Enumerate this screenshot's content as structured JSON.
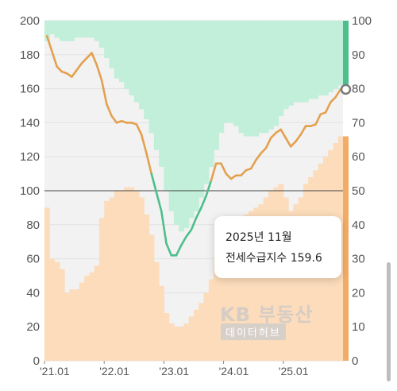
{
  "chart_data": {
    "type": "line",
    "y_left_ticks": [
      0,
      20,
      40,
      60,
      80,
      100,
      120,
      140,
      160,
      180,
      200
    ],
    "y_right_ticks": [
      0,
      10,
      20,
      30,
      40,
      50,
      60,
      70,
      80,
      90,
      100
    ],
    "x_ticks": [
      "'21.01",
      "'22.01",
      "'23.01",
      "'24.01",
      "'25.01"
    ],
    "ylim_left": [
      0,
      200
    ],
    "ylim_right": [
      0,
      100
    ],
    "reference_line": 100,
    "series": [
      {
        "values": [
          191,
          182,
          173,
          170,
          169,
          167,
          171,
          175,
          178,
          181,
          174,
          165,
          151,
          144,
          140,
          141,
          140,
          140,
          139,
          133,
          122,
          110,
          99,
          88,
          69,
          62,
          62,
          68,
          73,
          77,
          84,
          90,
          97,
          106,
          116,
          116,
          110,
          107,
          109,
          109,
          112,
          113,
          118,
          122,
          125,
          131,
          134,
          136,
          131,
          126,
          129,
          133,
          138,
          138,
          139,
          145,
          146,
          152,
          155,
          159.6
        ]
      },
      {
        "values": [
          45,
          30,
          29,
          27,
          20,
          21,
          21,
          23,
          25,
          26,
          28,
          42,
          47,
          48,
          50,
          50,
          51,
          51,
          50,
          48,
          43,
          37,
          29,
          22,
          14,
          11,
          10,
          10,
          11,
          13,
          15,
          17,
          20,
          24,
          30,
          33,
          36,
          39,
          40,
          41,
          43,
          44,
          45,
          46,
          48,
          50,
          51,
          52,
          48,
          44,
          46,
          48,
          52,
          54,
          56,
          58,
          60,
          62,
          64,
          66
        ]
      },
      {
        "values": [
          6,
          4,
          5,
          6,
          6,
          6,
          5,
          5,
          5,
          5,
          6,
          8,
          11,
          14,
          17,
          18,
          20,
          22,
          24,
          26,
          29,
          33,
          38,
          43,
          50,
          56,
          60,
          62,
          61,
          58,
          56,
          52,
          48,
          43,
          38,
          33,
          30,
          30,
          31,
          33,
          34,
          34,
          34,
          33,
          33,
          32,
          31,
          28,
          26,
          25,
          24,
          24,
          24,
          23,
          23,
          22,
          22,
          21,
          20,
          19
        ]
      }
    ],
    "colors": {
      "line": "#e3a14f",
      "line_low": "#4dbe8c",
      "supply_fill": "#fcdcbb",
      "demand_fill": "#c1efd9",
      "background": "#f2f2f2",
      "latest": "#f3ac66"
    }
  },
  "tooltip": {
    "date": "2025년 11월",
    "label": "전세수급지수 159.6"
  },
  "watermark": {
    "line1": "KB 부동산",
    "line2": "데이터허브"
  }
}
